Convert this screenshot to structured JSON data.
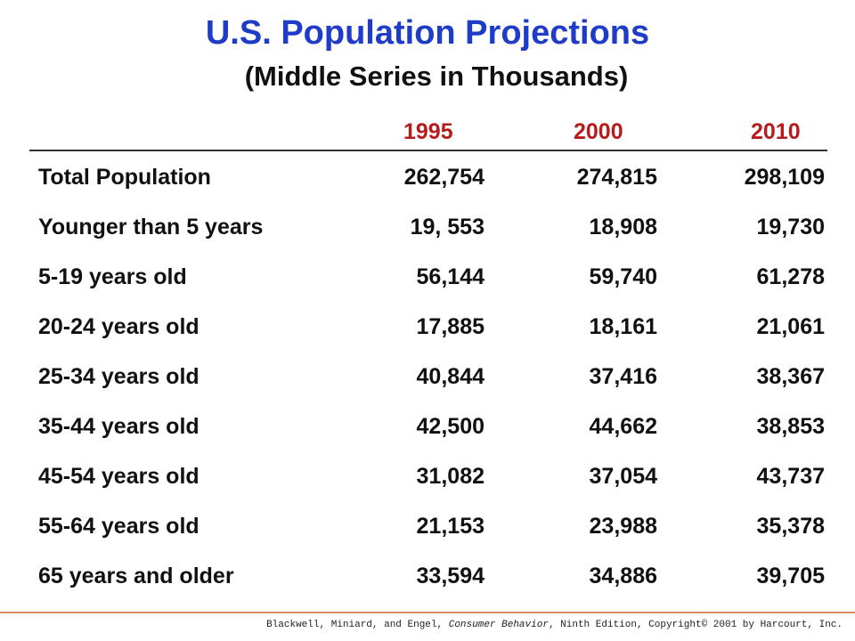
{
  "title": "U.S. Population Projections",
  "subtitle": "(Middle Series in Thousands)",
  "columns": [
    "1995",
    "2000",
    "2010"
  ],
  "rows": [
    {
      "label": "Total Population",
      "values": [
        "262,754",
        "274,815",
        "298,109"
      ]
    },
    {
      "label": "Younger than 5 years",
      "values": [
        "19, 553",
        "18,908",
        "19,730"
      ]
    },
    {
      "label": "5-19 years old",
      "values": [
        "56,144",
        "59,740",
        "61,278"
      ]
    },
    {
      "label": "20-24 years old",
      "values": [
        "17,885",
        "18,161",
        "21,061"
      ]
    },
    {
      "label": "25-34 years old",
      "values": [
        "40,844",
        "37,416",
        "38,367"
      ]
    },
    {
      "label": "35-44 years old",
      "values": [
        "42,500",
        "44,662",
        "38,853"
      ]
    },
    {
      "label": "45-54 years old",
      "values": [
        "31,082",
        "37,054",
        "43,737"
      ]
    },
    {
      "label": "55-64 years old",
      "values": [
        "21,153",
        "23,988",
        "35,378"
      ]
    },
    {
      "label": "65 years and older",
      "values": [
        "33,594",
        "34,886",
        "39,705"
      ]
    }
  ],
  "footer": {
    "prefix": "Blackwell, Miniard, and Engel, ",
    "book": "Consumer Behavior",
    "suffix": ", Ninth Edition, Copyright© 2001 by Harcourt, Inc."
  },
  "colors": {
    "title": "#1f3cc8",
    "column_headers": "#b51d1d",
    "footer_rule": "#d98c5f"
  }
}
